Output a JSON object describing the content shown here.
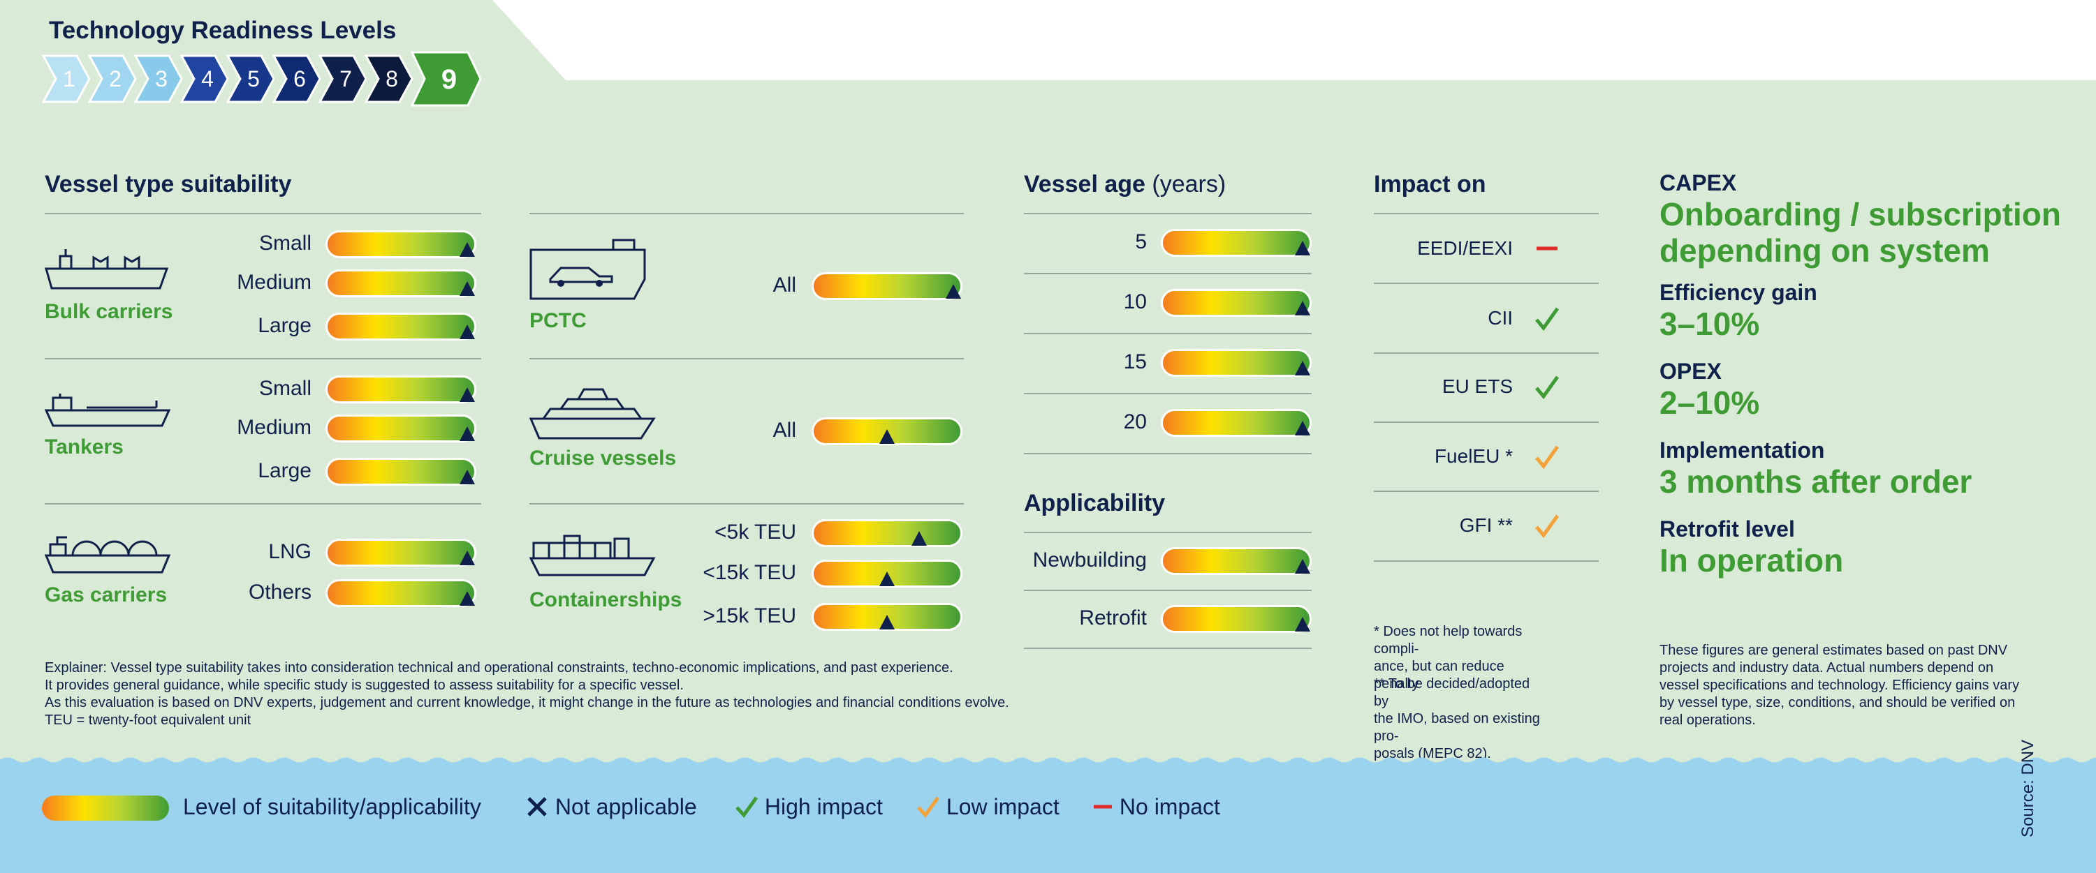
{
  "trl": {
    "title": "Technology Readiness Levels",
    "levels": [
      "1",
      "2",
      "3",
      "4",
      "5",
      "6",
      "7",
      "8",
      "9"
    ],
    "current": "9"
  },
  "vessel_type": {
    "title": "Vessel type suitability",
    "groups": [
      {
        "name": "Bulk carriers",
        "icon": "bulk-carrier-icon",
        "rows": [
          {
            "label": "Small",
            "level": 0.95
          },
          {
            "label": "Medium",
            "level": 0.95
          },
          {
            "label": "Large",
            "level": 0.95
          }
        ]
      },
      {
        "name": "Tankers",
        "icon": "tanker-icon",
        "rows": [
          {
            "label": "Small",
            "level": 0.95
          },
          {
            "label": "Medium",
            "level": 0.95
          },
          {
            "label": "Large",
            "level": 0.95
          }
        ]
      },
      {
        "name": "Gas carriers",
        "icon": "gas-carrier-icon",
        "rows": [
          {
            "label": "LNG",
            "level": 0.95
          },
          {
            "label": "Others",
            "level": 0.95
          }
        ]
      },
      {
        "name": "PCTC",
        "icon": "pctc-icon",
        "rows": [
          {
            "label": "All",
            "level": 0.95
          }
        ]
      },
      {
        "name": "Cruise vessels",
        "icon": "cruise-vessel-icon",
        "rows": [
          {
            "label": "All",
            "level": 0.5
          }
        ]
      },
      {
        "name": "Containerships",
        "icon": "containership-icon",
        "rows": [
          {
            "label": "<5k TEU",
            "level": 0.72
          },
          {
            "label": "<15k TEU",
            "level": 0.5
          },
          {
            "label": ">15k TEU",
            "level": 0.5
          }
        ]
      }
    ]
  },
  "vessel_age": {
    "title": "Vessel age",
    "unit": "(years)",
    "rows": [
      {
        "label": "5",
        "level": 0.95
      },
      {
        "label": "10",
        "level": 0.95
      },
      {
        "label": "15",
        "level": 0.95
      },
      {
        "label": "20",
        "level": 0.95
      }
    ]
  },
  "applicability": {
    "title": "Applicability",
    "rows": [
      {
        "label": "Newbuilding",
        "level": 0.95
      },
      {
        "label": "Retrofit",
        "level": 0.95
      }
    ]
  },
  "impact": {
    "title": "Impact on",
    "rows": [
      {
        "label": "EEDI/EEXI",
        "status": "No impact",
        "icon": "dash-icon"
      },
      {
        "label": "CII",
        "status": "High impact",
        "icon": "check-icon"
      },
      {
        "label": "EU ETS",
        "status": "High impact",
        "icon": "check-icon"
      },
      {
        "label": "FuelEU *",
        "status": "Low impact",
        "icon": "check-icon"
      },
      {
        "label": "GFI **",
        "status": "Low impact",
        "icon": "check-icon"
      }
    ],
    "note1": "* Does not help towards compli-\nance, but can reduce penalty",
    "note2": "** To be decided/adopted by\nthe IMO, based on existing pro-\nposals (MEPC 82)."
  },
  "summary": {
    "capex_label": "CAPEX",
    "capex_value": "Onboarding / subscription\ndepending on system",
    "efficiency_label": "Efficiency gain",
    "efficiency_value": "3–10%",
    "opex_label": "OPEX",
    "opex_value": "2–10%",
    "implementation_label": "Implementation",
    "implementation_value": "3 months after order",
    "retrofit_label": "Retrofit level",
    "retrofit_value": "In operation",
    "note": "These figures are general estimates based on past DNV\nprojects and industry data. Actual numbers depend on\nvessel specifications and technology. Efficiency gains vary\nby vessel type, size, conditions, and should be verified on\nreal operations."
  },
  "explainer": "Explainer: Vessel type suitability takes into consideration technical and operational constraints, techno-economic implications, and past experience.\nIt provides general guidance, while specific study is suggested to assess suitability for a specific vessel.\nAs this evaluation is based on DNV experts, judgement and current knowledge, it might change in the future as technologies and financial conditions evolve.\nTEU = twenty-foot equivalent unit",
  "legend": {
    "scale": "Level of suitability/applicability",
    "not_applicable": "Not applicable",
    "high_impact": "High impact",
    "low_impact": "Low impact",
    "no_impact": "No impact"
  },
  "source": "Source: DNV",
  "colors": {
    "navy": "#0f204b",
    "green": "#3f9c35",
    "orange": "#f4a13a",
    "red": "#e02b2b",
    "sea": "#9bd3ef",
    "bg": "#d9ead6"
  }
}
